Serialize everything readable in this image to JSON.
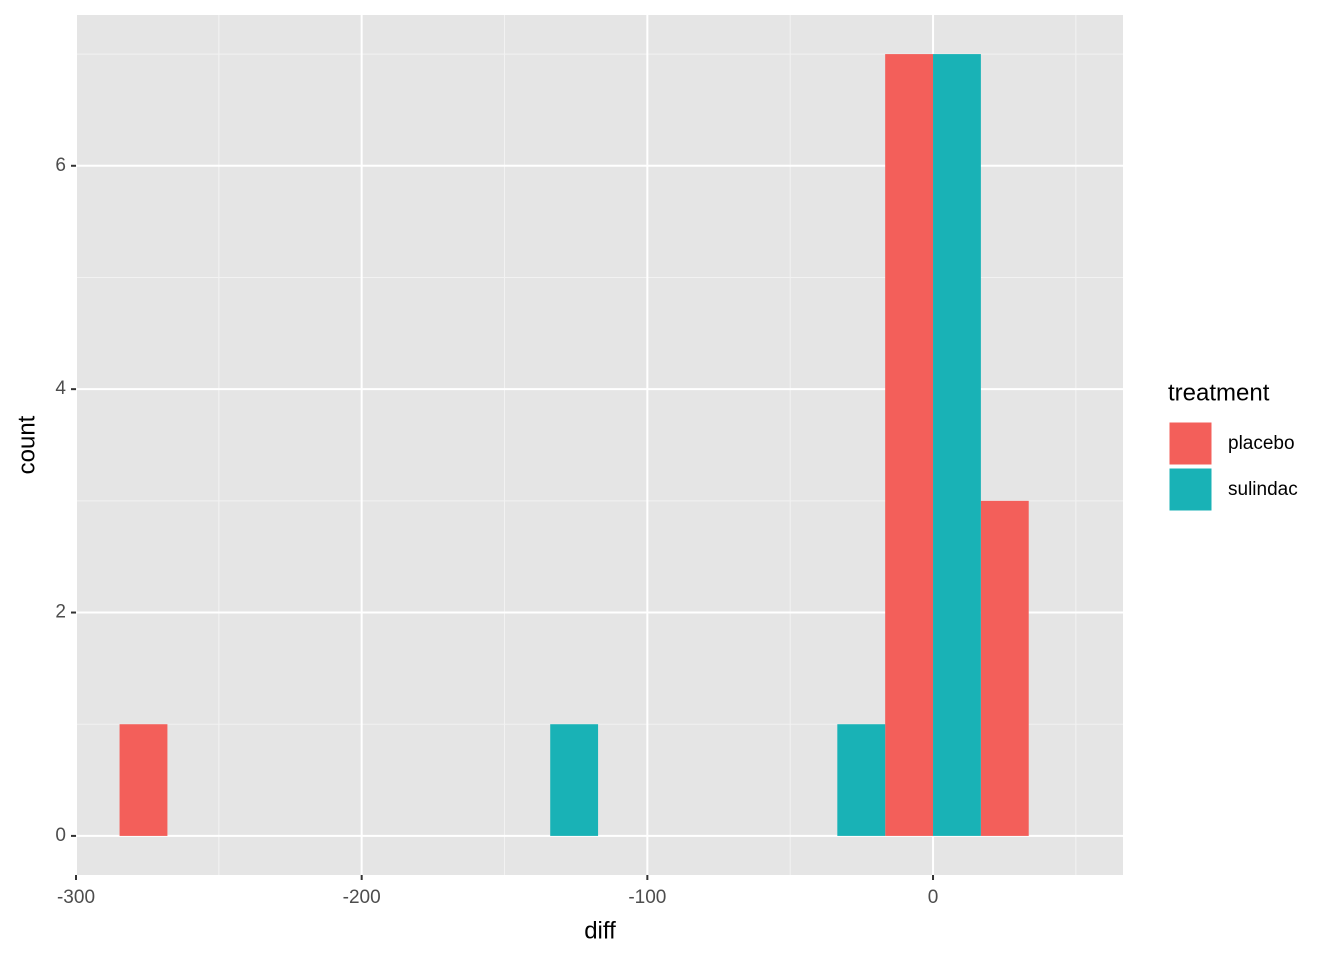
{
  "chart_data": {
    "type": "histogram",
    "x_label": "diff",
    "y_label": "count",
    "bins": [
      -284.75,
      -251.25,
      -217.75,
      -184.25,
      -150.75,
      -117.25,
      -83.75,
      -50.25,
      -16.75,
      16.75,
      50.25
    ],
    "series": [
      {
        "name": "placebo",
        "color": "#f35f5a",
        "values": [
          1,
          0,
          0,
          0,
          0,
          0,
          0,
          0,
          7,
          3
        ]
      },
      {
        "name": "sulindac",
        "color": "#19b2b6",
        "values": [
          0,
          0,
          0,
          0,
          1,
          0,
          0,
          1,
          7,
          0
        ]
      }
    ],
    "legend_title": "treatment",
    "legend": "right",
    "xlim": [
      -300,
      66.5
    ],
    "xticks": [
      -300,
      -200,
      -100,
      0
    ],
    "xminor": [
      -250,
      -150,
      -50,
      50
    ],
    "ylim": [
      -0.35,
      7.35
    ],
    "yticks": [
      0,
      2,
      4,
      6
    ],
    "yminor": [
      1,
      3,
      5,
      7
    ],
    "grid": true
  }
}
